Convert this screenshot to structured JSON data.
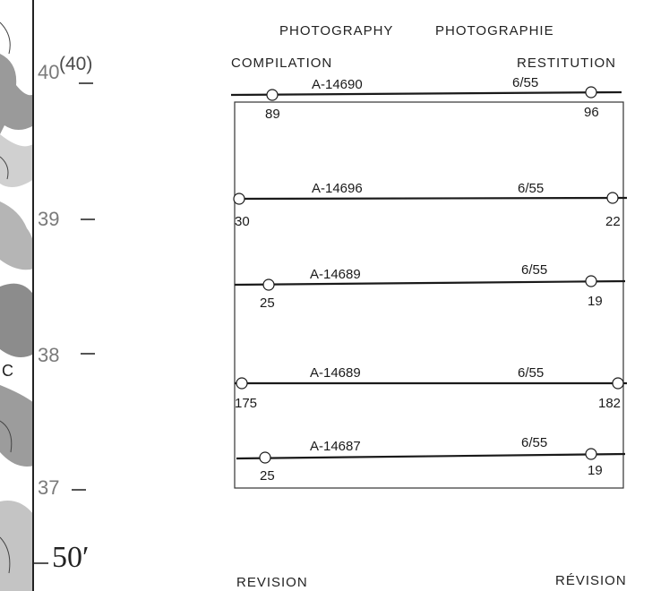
{
  "header": {
    "photography_en": "PHOTOGRAPHY",
    "photography_fr": "PHOTOGRAPHIE",
    "compilation": "COMPILATION",
    "restitution": "RESTITUTION"
  },
  "grid": {
    "northing_40": "40",
    "northing_40_alt": "(40)",
    "northing_39": "39",
    "northing_38": "38",
    "northing_37": "37",
    "minutes": "50′",
    "map_letter": "C"
  },
  "flight_lines": [
    {
      "roll": "A-14690",
      "date": "6/55",
      "photo_left": "89",
      "photo_right": "96"
    },
    {
      "roll": "A-14696",
      "date": "6/55",
      "photo_left": "30",
      "photo_right": "22"
    },
    {
      "roll": "A-14689",
      "date": "6/55",
      "photo_left": "25",
      "photo_right": "19"
    },
    {
      "roll": "A-14689",
      "date": "6/55",
      "photo_left": "175",
      "photo_right": "182"
    },
    {
      "roll": "A-14687",
      "date": "6/55",
      "photo_left": "25",
      "photo_right": "19"
    }
  ],
  "footer": {
    "revision_en": "REVISION",
    "revision_fr": "RÉVISION"
  },
  "colors": {
    "map_shade_dark": "#8a8a8a",
    "map_shade_light": "#cfcfcf",
    "line": "#1a1a1a"
  }
}
